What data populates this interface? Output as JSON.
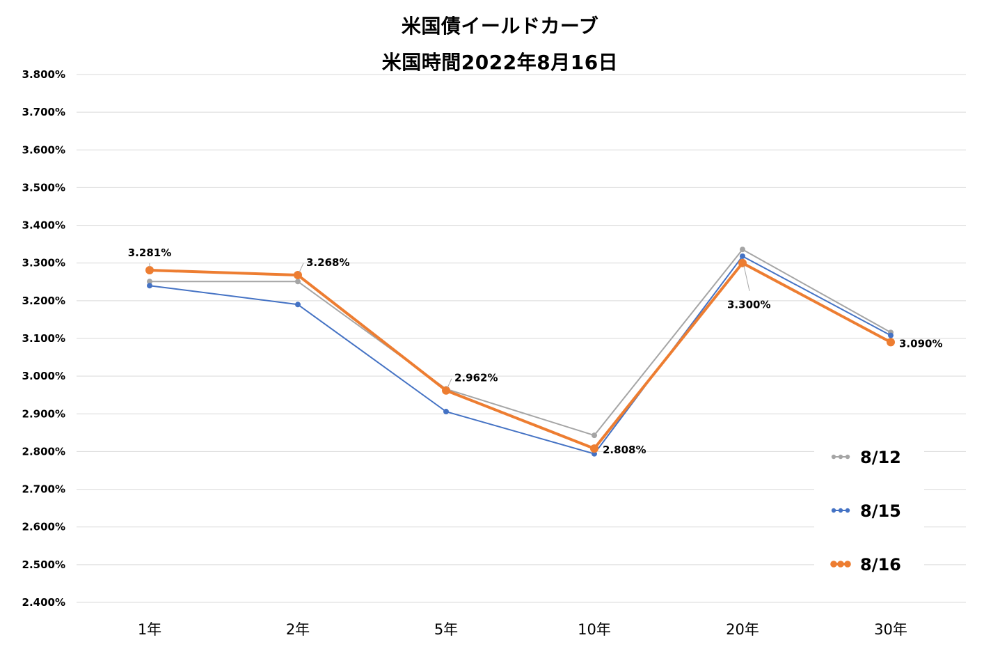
{
  "chart_data": {
    "type": "line",
    "title_lines": [
      "米国債イールドカーブ",
      "米国時間2022年8月16日"
    ],
    "categories": [
      "1年",
      "2年",
      "5年",
      "10年",
      "20年",
      "30年"
    ],
    "series": [
      {
        "name": "8/12",
        "color": "#A5A5A5",
        "values": [
          3.251,
          3.251,
          2.966,
          2.843,
          3.336,
          3.116
        ]
      },
      {
        "name": "8/15",
        "color": "#4472C4",
        "values": [
          3.24,
          3.19,
          2.906,
          2.794,
          3.318,
          3.108
        ]
      },
      {
        "name": "8/16",
        "color": "#ED7D31",
        "values": [
          3.281,
          3.268,
          2.962,
          2.808,
          3.3,
          3.09
        ]
      }
    ],
    "data_labels": [
      {
        "series": "8/16",
        "category": "1年",
        "text": "3.281%"
      },
      {
        "series": "8/16",
        "category": "2年",
        "text": "3.268%"
      },
      {
        "series": "8/16",
        "category": "5年",
        "text": "2.962%"
      },
      {
        "series": "8/16",
        "category": "10年",
        "text": "2.808%"
      },
      {
        "series": "8/16",
        "category": "20年",
        "text": "3.300%"
      },
      {
        "series": "8/16",
        "category": "30年",
        "text": "3.090%"
      }
    ],
    "ylim": [
      2.4,
      3.8
    ],
    "ytick_step": 0.1,
    "ytick_format": "%.3f%",
    "grid": true,
    "legend_position": "bottom-right"
  }
}
